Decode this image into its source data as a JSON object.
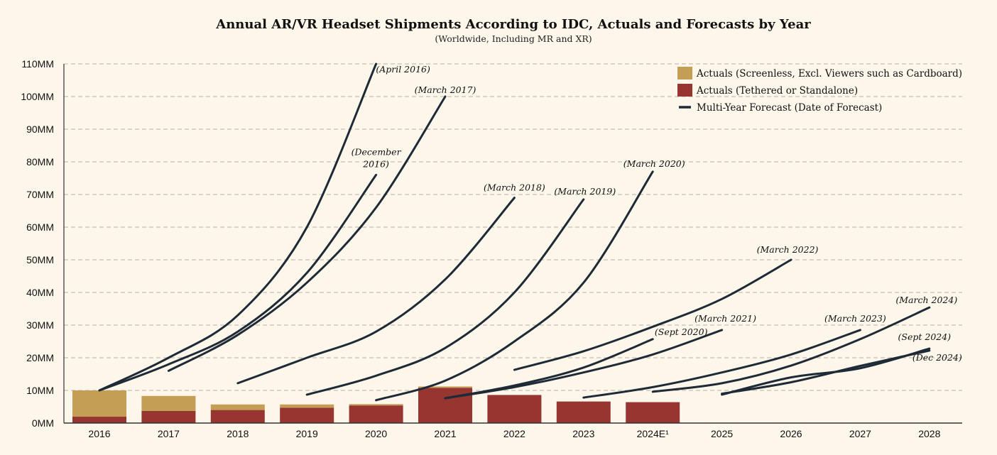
{
  "colors": {
    "background": "#FDF6EA",
    "screenless": "#C49E55",
    "tethered": "#973631",
    "forecast": "#1E2A36",
    "grid": "#B8B2A8"
  },
  "chart_data": {
    "type": "bar",
    "title": "Annual AR/VR Headset Shipments According to IDC, Actuals and Forecasts by Year",
    "subtitle": "(Worldwide, Including MR and XR)",
    "xlabel": "",
    "ylabel": "",
    "ylim": [
      0,
      110
    ],
    "grid": true,
    "legend_position": "top-right",
    "yticks": [
      {
        "value": 0,
        "label": "0MM"
      },
      {
        "value": 10,
        "label": "10MM"
      },
      {
        "value": 20,
        "label": "20MM"
      },
      {
        "value": 30,
        "label": "30MM"
      },
      {
        "value": 40,
        "label": "40MM"
      },
      {
        "value": 50,
        "label": "50MM"
      },
      {
        "value": 60,
        "label": "60MM"
      },
      {
        "value": 70,
        "label": "70MM"
      },
      {
        "value": 80,
        "label": "80MM"
      },
      {
        "value": 90,
        "label": "90MM"
      },
      {
        "value": 100,
        "label": "100MM"
      },
      {
        "value": 110,
        "label": "110MM"
      }
    ],
    "categories": [
      "2016",
      "2017",
      "2018",
      "2019",
      "2020",
      "2021",
      "2022",
      "2023",
      "2024E¹",
      "2025",
      "2026",
      "2027",
      "2028"
    ],
    "series": [
      {
        "name": "Actuals (Tethered or Standalone)",
        "stack": "actuals",
        "values": [
          2.0,
          3.7,
          4.0,
          4.7,
          5.4,
          10.8,
          8.6,
          6.6,
          6.4,
          null,
          null,
          null,
          null
        ]
      },
      {
        "name": "Actuals (Screenless, Excl. Viewers such as Cardboard)",
        "stack": "actuals",
        "values": [
          8.0,
          4.6,
          1.7,
          1.0,
          0.4,
          0.4,
          0,
          0,
          0,
          null,
          null,
          null,
          null
        ]
      }
    ],
    "legend": [
      {
        "label": "Actuals (Screenless, Excl. Viewers such as Cardboard)",
        "kind": "screenless"
      },
      {
        "label": "Actuals (Tethered or Standalone)",
        "kind": "tethered"
      },
      {
        "label": "Multi-Year Forecast  (Date of Forecast)",
        "kind": "forecast"
      }
    ],
    "forecasts": [
      {
        "label": "(April 2016)",
        "start_index": 0,
        "values": [
          10,
          20,
          33,
          60,
          110
        ]
      },
      {
        "label": "(December|2016)",
        "start_index": 0,
        "values": [
          10,
          18,
          28,
          46,
          76
        ]
      },
      {
        "label": "(March 2017)",
        "start_index": 1,
        "values": [
          16,
          27,
          43,
          66,
          100
        ]
      },
      {
        "label": "(March 2018)",
        "start_index": 2,
        "values": [
          12.2,
          20,
          28,
          44,
          69
        ]
      },
      {
        "label": "(March 2019)",
        "start_index": 3,
        "values": [
          8.7,
          14.5,
          23,
          40,
          68.5
        ]
      },
      {
        "label": "(March 2020)",
        "start_index": 4,
        "values": [
          7,
          13,
          25,
          43,
          77
        ]
      },
      {
        "label": "(Sept 2020)",
        "start_index": 5,
        "values": [
          7.6,
          11.5,
          17,
          25.7
        ]
      },
      {
        "label": "(March 2021)",
        "start_index": 5,
        "values": [
          7.6,
          11,
          15.5,
          21,
          28.5
        ]
      },
      {
        "label": "(March 2022)",
        "start_index": 6,
        "values": [
          16.3,
          22,
          29.5,
          38,
          50
        ]
      },
      {
        "label": "(March 2023)",
        "start_index": 7,
        "values": [
          7.8,
          11,
          15.5,
          21,
          28.5
        ]
      },
      {
        "label": "(March 2024)",
        "start_index": 8,
        "values": [
          9.6,
          12.2,
          17.6,
          25.7,
          35.4
        ]
      },
      {
        "label": "(Sept 2024)",
        "start_index": 9,
        "values": [
          8.7,
          14,
          16.8,
          22.8
        ]
      },
      {
        "label": "(Dec 2024)",
        "start_index": 9,
        "values": [
          9,
          12.5,
          17.5,
          22.2
        ]
      }
    ]
  }
}
